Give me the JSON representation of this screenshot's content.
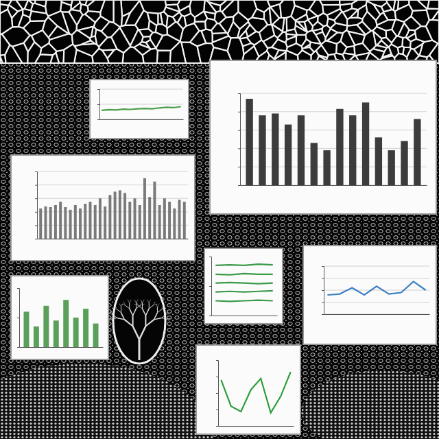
{
  "chart_data": [
    {
      "type": "bar",
      "values": [
        94,
        76,
        78,
        66,
        76,
        46,
        38,
        83,
        76,
        90,
        52,
        38,
        48,
        72
      ],
      "color": "#3c3c3c",
      "ylim": [
        0,
        100
      ],
      "yticks": [
        0,
        20,
        40,
        60,
        80,
        100
      ],
      "grid": true,
      "tick_labels": false
    },
    {
      "type": "bar",
      "values": [
        45,
        48,
        47,
        50,
        55,
        47,
        43,
        50,
        45,
        52,
        55,
        50,
        60,
        48,
        65,
        70,
        72,
        68,
        55,
        60,
        50,
        90,
        62,
        85,
        50,
        60,
        55,
        45,
        58,
        55
      ],
      "color": "#7a7a7a",
      "ylim": [
        0,
        100
      ],
      "yticks": [
        0,
        20,
        40,
        60,
        80,
        100
      ],
      "grid": true,
      "tick_labels": false
    },
    {
      "type": "line",
      "values": [
        40,
        42,
        55,
        40,
        58,
        42,
        45,
        68,
        50
      ],
      "color": "#3b7fc4",
      "ylim": [
        0,
        100
      ],
      "yticks": [
        0,
        25,
        50,
        75,
        100
      ],
      "grid": true,
      "tick_labels": false
    },
    {
      "type": "line",
      "values": [
        70,
        30,
        22,
        55,
        72,
        20,
        45,
        82
      ],
      "color": "#2e9e3e",
      "ylim": [
        0,
        100
      ],
      "yticks": [
        0,
        25,
        50,
        75,
        100
      ],
      "grid": false,
      "tick_labels": false
    },
    {
      "type": "line",
      "values": [
        30,
        32,
        31,
        34,
        33,
        35,
        36,
        35,
        38,
        40,
        39,
        42
      ],
      "color": "#4aa04a",
      "ylim": [
        0,
        100
      ],
      "yticks": [
        0,
        50,
        100
      ],
      "grid": true,
      "tick_labels": false
    },
    {
      "type": "line",
      "series": [
        {
          "color": "#3a9a4a",
          "values": [
            85,
            86,
            85,
            87,
            86
          ]
        },
        {
          "color": "#3a9a4a",
          "values": [
            70,
            69,
            71,
            70,
            70
          ]
        },
        {
          "color": "#3a9a4a",
          "values": [
            55,
            56,
            55,
            54,
            55
          ]
        },
        {
          "color": "#3a9a4a",
          "values": [
            40,
            41,
            40,
            41,
            42
          ]
        },
        {
          "color": "#3a9a4a",
          "values": [
            25,
            24,
            25,
            26,
            25
          ]
        }
      ],
      "ylim": [
        0,
        100
      ],
      "yticks": [
        0,
        50,
        100
      ],
      "grid": false,
      "tick_labels": false
    },
    {
      "type": "bar",
      "values": [
        60,
        35,
        70,
        45,
        80,
        50,
        65,
        40
      ],
      "color": "#5aa05a",
      "ylim": [
        0,
        100
      ],
      "yticks": [
        0,
        50,
        100
      ],
      "grid": false,
      "tick_labels": false
    }
  ]
}
